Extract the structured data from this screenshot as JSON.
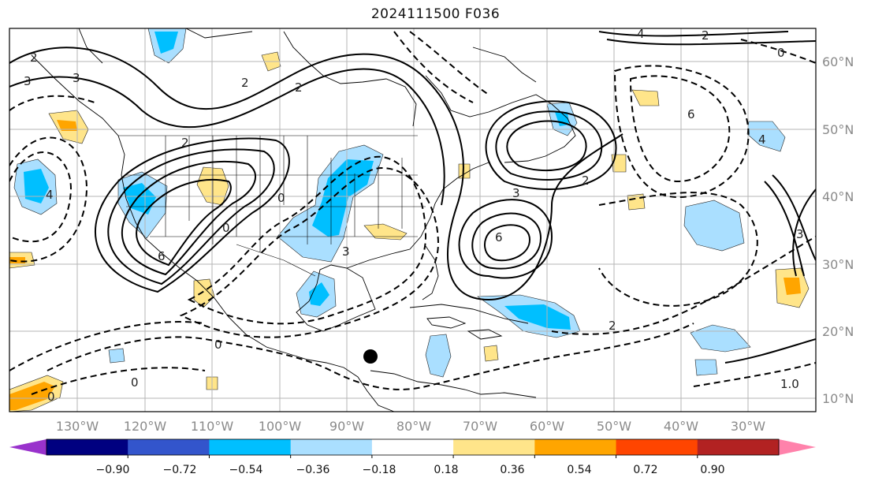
{
  "title": "2024111500 F036",
  "lon_labels": [
    "130°W",
    "120°W",
    "110°W",
    "100°W",
    "90°W",
    "80°W",
    "70°W",
    "60°W",
    "50°W",
    "40°W",
    "30°W"
  ],
  "lat_labels": [
    "60°N",
    "50°N",
    "40°N",
    "30°N",
    "20°N",
    "10°N"
  ],
  "colorbar": {
    "colors": [
      "#9932cc",
      "#000080",
      "#3355cc",
      "#00bfff",
      "#aadfff",
      "#ffffff",
      "#ffe58a",
      "#ffa500",
      "#ff4500",
      "#b22222",
      "#ff82ab"
    ],
    "tick_labels": [
      "−0.90",
      "−0.72",
      "−0.54",
      "−0.36",
      "−0.18",
      "0.18",
      "0.36",
      "0.54",
      "0.72",
      "0.90"
    ]
  },
  "contour_labels": [
    "2",
    "3",
    "3",
    "2",
    "2",
    "4",
    "6",
    "6",
    "0",
    "3",
    "6",
    "2",
    "4",
    "0",
    "2",
    "1.0",
    "0",
    "0",
    "0",
    "3",
    "2",
    "4",
    "3",
    "2",
    "0"
  ],
  "marker": "storm-center-dot"
}
